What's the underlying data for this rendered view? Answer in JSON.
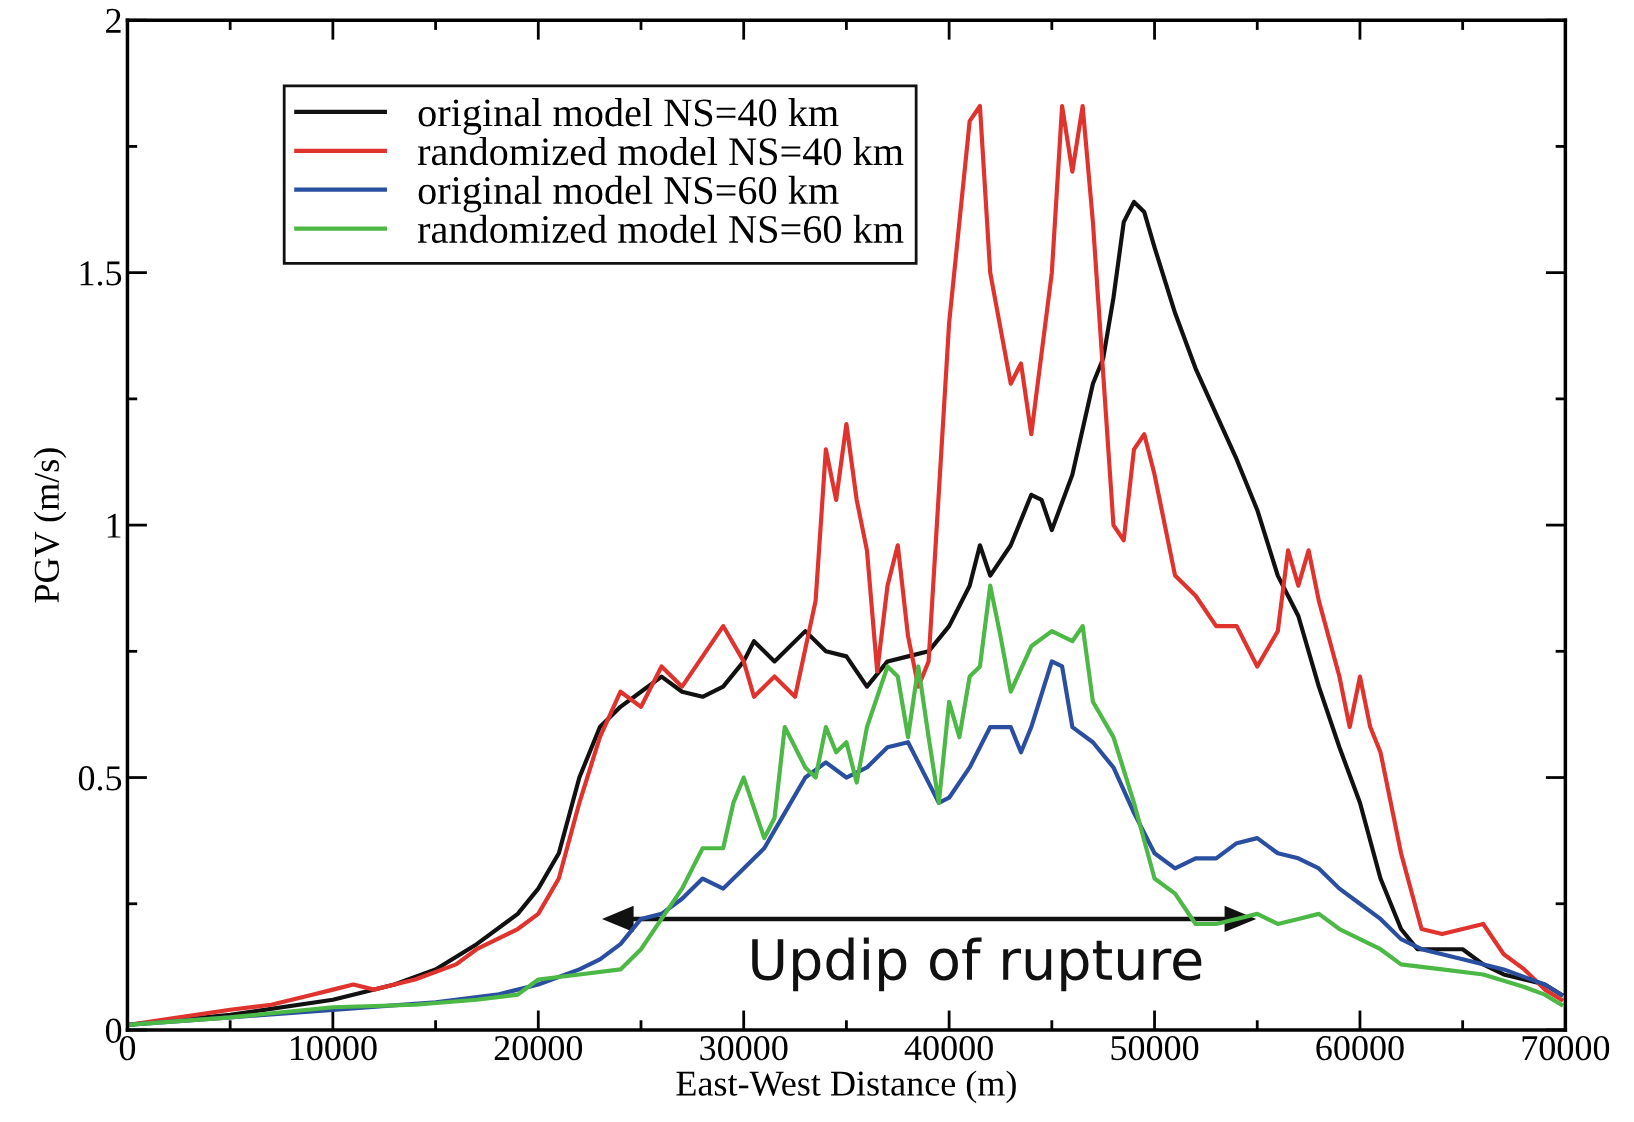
{
  "chart_data": {
    "type": "line",
    "xlabel": "East-West Distance (m)",
    "ylabel": "PGV (m/s)",
    "xlim": [
      0,
      70000
    ],
    "xticks": [
      0,
      {
        "value": 5000,
        "label": null
      },
      10000,
      {
        "value": 15000,
        "label": null
      },
      20000,
      {
        "value": 25000,
        "label": null
      },
      30000,
      {
        "value": 35000,
        "label": null
      },
      40000,
      {
        "value": 45000,
        "label": null
      },
      50000,
      {
        "value": 55000,
        "label": null
      },
      60000,
      {
        "value": 65000,
        "label": null
      },
      70000
    ],
    "ylim": [
      0,
      2
    ],
    "yticks": [
      0,
      {
        "value": 0.25,
        "label": null
      },
      0.5,
      {
        "value": 0.75,
        "label": null
      },
      1,
      {
        "value": 1.25,
        "label": null
      },
      1.5,
      {
        "value": 1.75,
        "label": null
      },
      2
    ],
    "grid": false,
    "legend": "top left",
    "annotations": [
      "Updip of rupture"
    ],
    "series": [
      {
        "name": "original model NS=40 km",
        "color": "#111111",
        "x": [
          0,
          5000,
          10000,
          13000,
          15000,
          17000,
          19000,
          20000,
          21000,
          22000,
          23000,
          24000,
          25000,
          26000,
          27000,
          28000,
          29000,
          30000,
          30500,
          31500,
          33000,
          34000,
          35000,
          36000,
          37000,
          38000,
          39000,
          40000,
          41000,
          41500,
          42000,
          43000,
          44000,
          44500,
          45000,
          46000,
          47000,
          47500,
          48000,
          48500,
          49000,
          49500,
          50000,
          51000,
          52000,
          53000,
          54000,
          55000,
          56000,
          57000,
          58000,
          59000,
          60000,
          61000,
          62000,
          62800,
          64000,
          65000,
          66000,
          67000,
          68000,
          69000,
          69800
        ],
        "values": [
          0.01,
          0.03,
          0.06,
          0.09,
          0.12,
          0.17,
          0.23,
          0.28,
          0.35,
          0.5,
          0.6,
          0.64,
          0.67,
          0.7,
          0.67,
          0.66,
          0.68,
          0.73,
          0.77,
          0.73,
          0.79,
          0.75,
          0.74,
          0.68,
          0.73,
          0.74,
          0.75,
          0.8,
          0.88,
          0.96,
          0.9,
          0.96,
          1.06,
          1.05,
          0.99,
          1.1,
          1.28,
          1.33,
          1.45,
          1.6,
          1.64,
          1.62,
          1.55,
          1.42,
          1.31,
          1.22,
          1.13,
          1.03,
          0.9,
          0.82,
          0.68,
          0.56,
          0.45,
          0.3,
          0.2,
          0.16,
          0.16,
          0.16,
          0.13,
          0.11,
          0.1,
          0.09,
          0.07
        ]
      },
      {
        "name": "randomized model NS=40 km",
        "color": "#e0332e",
        "x": [
          0,
          5000,
          7000,
          9000,
          10000,
          11000,
          12000,
          13000,
          14000,
          16000,
          17000,
          18000,
          19000,
          20000,
          21000,
          22000,
          23000,
          24000,
          25000,
          26000,
          27000,
          28000,
          29000,
          30000,
          30500,
          31500,
          32500,
          33500,
          34000,
          34500,
          35000,
          35500,
          36000,
          36500,
          37000,
          37500,
          38000,
          38500,
          39000,
          40000,
          41000,
          41500,
          42000,
          43000,
          43500,
          44000,
          45000,
          45500,
          46000,
          46500,
          47000,
          48000,
          48500,
          49000,
          49500,
          50000,
          51000,
          52000,
          53000,
          54000,
          55000,
          56000,
          56500,
          57000,
          57500,
          58000,
          59000,
          59500,
          60000,
          60500,
          61000,
          62000,
          63000,
          64000,
          65000,
          66000,
          67000,
          68000,
          69000,
          69800
        ],
        "values": [
          0.01,
          0.04,
          0.05,
          0.07,
          0.08,
          0.09,
          0.08,
          0.09,
          0.1,
          0.13,
          0.16,
          0.18,
          0.2,
          0.23,
          0.3,
          0.45,
          0.58,
          0.67,
          0.64,
          0.72,
          0.68,
          0.74,
          0.8,
          0.73,
          0.66,
          0.7,
          0.66,
          0.85,
          1.15,
          1.05,
          1.2,
          1.05,
          0.95,
          0.71,
          0.88,
          0.96,
          0.78,
          0.68,
          0.73,
          1.4,
          1.8,
          1.83,
          1.5,
          1.28,
          1.32,
          1.18,
          1.5,
          1.83,
          1.7,
          1.83,
          1.6,
          1.0,
          0.97,
          1.15,
          1.18,
          1.1,
          0.9,
          0.86,
          0.8,
          0.8,
          0.72,
          0.79,
          0.95,
          0.88,
          0.95,
          0.85,
          0.7,
          0.6,
          0.7,
          0.6,
          0.55,
          0.35,
          0.2,
          0.19,
          0.2,
          0.21,
          0.15,
          0.12,
          0.08,
          0.06
        ]
      },
      {
        "name": "original model NS=60 km",
        "color": "#2a4fa0",
        "x": [
          0,
          5000,
          10000,
          15000,
          18000,
          20000,
          22000,
          23000,
          24000,
          25000,
          26000,
          27000,
          28000,
          29000,
          30000,
          31000,
          32000,
          33000,
          34000,
          35000,
          36000,
          37000,
          38000,
          39000,
          39500,
          40000,
          41000,
          42000,
          43000,
          43500,
          44000,
          45000,
          45500,
          46000,
          47000,
          48000,
          49000,
          50000,
          51000,
          52000,
          53000,
          54000,
          55000,
          56000,
          57000,
          58000,
          59000,
          60000,
          61000,
          62000,
          63000,
          65000,
          67000,
          69000,
          69800
        ],
        "values": [
          0.01,
          0.025,
          0.04,
          0.055,
          0.07,
          0.09,
          0.12,
          0.14,
          0.17,
          0.22,
          0.23,
          0.26,
          0.3,
          0.28,
          0.32,
          0.36,
          0.43,
          0.5,
          0.53,
          0.5,
          0.52,
          0.56,
          0.57,
          0.49,
          0.45,
          0.46,
          0.52,
          0.6,
          0.6,
          0.55,
          0.6,
          0.73,
          0.72,
          0.6,
          0.57,
          0.52,
          0.43,
          0.35,
          0.32,
          0.34,
          0.34,
          0.37,
          0.38,
          0.35,
          0.34,
          0.32,
          0.28,
          0.25,
          0.22,
          0.18,
          0.16,
          0.14,
          0.12,
          0.09,
          0.07
        ]
      },
      {
        "name": "randomized model NS=60 km",
        "color": "#4cb845",
        "x": [
          0,
          5000,
          10000,
          14000,
          17000,
          19000,
          20000,
          22000,
          24000,
          25000,
          26000,
          27000,
          28000,
          29000,
          29500,
          30000,
          31000,
          31500,
          32000,
          33000,
          33500,
          34000,
          34500,
          35000,
          35500,
          36000,
          37000,
          37500,
          38000,
          38500,
          39000,
          39500,
          40000,
          40500,
          41000,
          41500,
          42000,
          42500,
          43000,
          44000,
          45000,
          46000,
          46500,
          47000,
          48000,
          49000,
          50000,
          51000,
          52000,
          53000,
          54000,
          55000,
          56000,
          57000,
          58000,
          59000,
          60000,
          61000,
          62000,
          64000,
          66000,
          68000,
          69000,
          69800
        ],
        "values": [
          0.01,
          0.025,
          0.045,
          0.05,
          0.06,
          0.07,
          0.1,
          0.11,
          0.12,
          0.16,
          0.22,
          0.28,
          0.36,
          0.36,
          0.45,
          0.5,
          0.38,
          0.42,
          0.6,
          0.52,
          0.5,
          0.6,
          0.55,
          0.57,
          0.49,
          0.6,
          0.72,
          0.7,
          0.58,
          0.72,
          0.58,
          0.45,
          0.65,
          0.58,
          0.7,
          0.72,
          0.88,
          0.78,
          0.67,
          0.76,
          0.79,
          0.77,
          0.8,
          0.65,
          0.58,
          0.45,
          0.3,
          0.27,
          0.21,
          0.21,
          0.22,
          0.23,
          0.21,
          0.22,
          0.23,
          0.2,
          0.18,
          0.16,
          0.13,
          0.12,
          0.11,
          0.085,
          0.07,
          0.05
        ]
      }
    ]
  }
}
